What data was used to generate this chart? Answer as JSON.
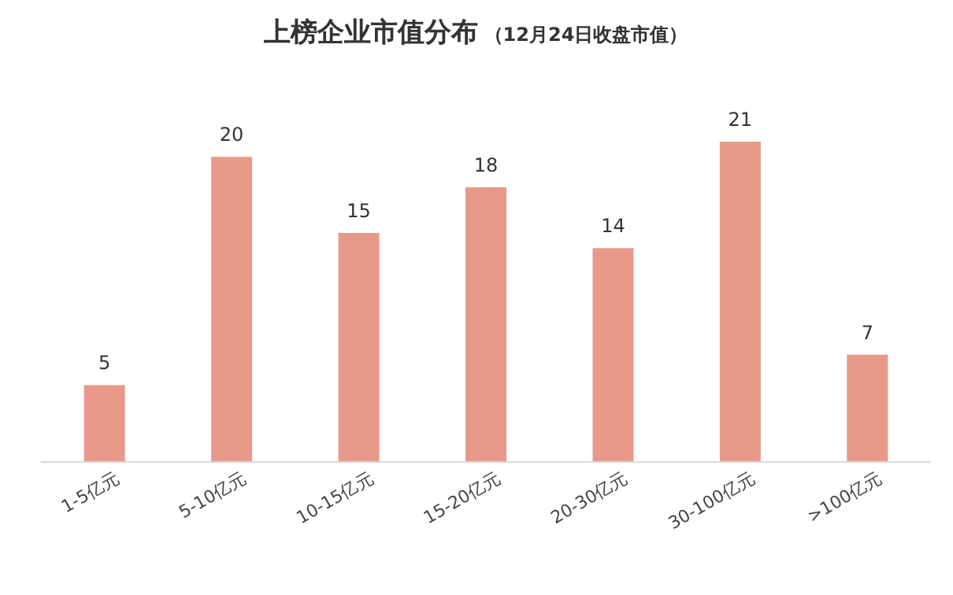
{
  "chart_data": {
    "type": "bar",
    "title": "上榜企业市值分布",
    "subtitle": "（12月24日收盘市值）",
    "categories": [
      "1-5亿元",
      "5-10亿元",
      "10-15亿元",
      "15-20亿元",
      "20-30亿元",
      "30-100亿元",
      ">100亿元"
    ],
    "values": [
      5,
      20,
      15,
      18,
      14,
      21,
      7
    ],
    "color": "#e8998a",
    "data_labels": true
  }
}
